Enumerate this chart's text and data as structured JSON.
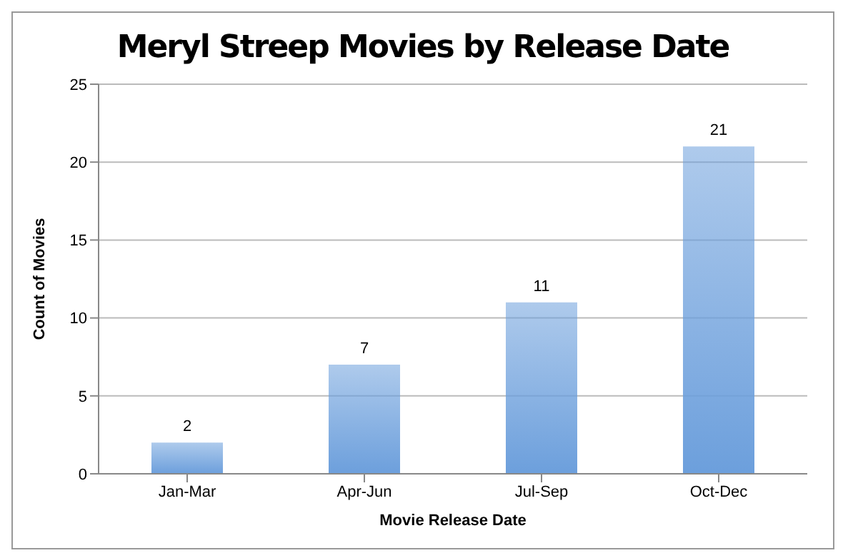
{
  "chart_data": {
    "type": "bar",
    "title": "Meryl Streep Movies by Release Date",
    "xlabel": "Movie Release Date",
    "ylabel": "Count of Movies",
    "categories": [
      "Jan-Mar",
      "Apr-Jun",
      "Jul-Sep",
      "Oct-Dec"
    ],
    "values": [
      2,
      7,
      11,
      21
    ],
    "color": "#6c9fdc",
    "ylim": [
      0,
      25
    ],
    "yticks": [
      0,
      5,
      10,
      15,
      20,
      25
    ],
    "grid": "y",
    "data_labels": true
  }
}
